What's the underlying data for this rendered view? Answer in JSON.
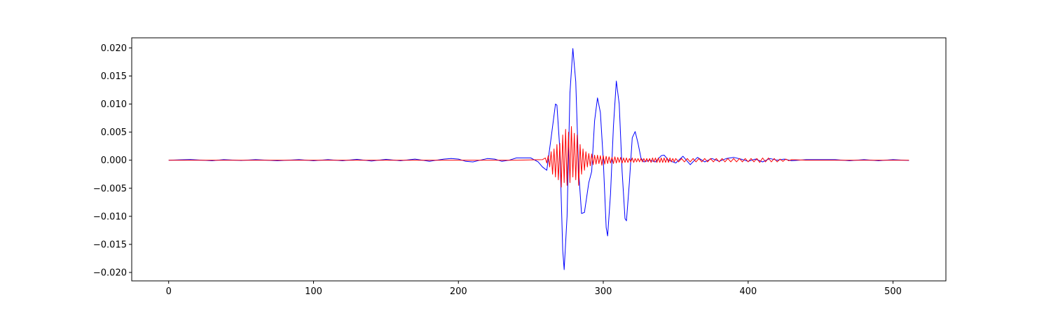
{
  "chart_data": {
    "type": "line",
    "title": "",
    "xlabel": "",
    "ylabel": "",
    "xlim": [
      -25.5,
      536.5
    ],
    "ylim": [
      -0.0215,
      0.0218
    ],
    "x_ticks": [
      0,
      100,
      200,
      300,
      400,
      500
    ],
    "x_tick_labels": [
      "0",
      "100",
      "200",
      "300",
      "400",
      "500"
    ],
    "y_ticks": [
      -0.02,
      -0.015,
      -0.01,
      -0.005,
      0.0,
      0.005,
      0.01,
      0.015,
      0.02
    ],
    "y_tick_labels": [
      "−0.020",
      "−0.015",
      "−0.010",
      "−0.005",
      "0.000",
      "0.005",
      "0.010",
      "0.015",
      "0.020"
    ],
    "grid": false,
    "legend": "none",
    "series": [
      {
        "color": "#0000ff",
        "points": [
          [
            0,
            0.0
          ],
          [
            15,
            0.00012
          ],
          [
            30,
            -0.0001
          ],
          [
            38,
            0.0001
          ],
          [
            50,
            -5e-05
          ],
          [
            60,
            0.0001
          ],
          [
            75,
            -0.0001
          ],
          [
            90,
            0.0001
          ],
          [
            100,
            -0.0001
          ],
          [
            110,
            0.0001
          ],
          [
            120,
            -0.0001
          ],
          [
            130,
            0.00015
          ],
          [
            140,
            -0.00015
          ],
          [
            150,
            0.00015
          ],
          [
            160,
            -0.0001
          ],
          [
            170,
            0.0002
          ],
          [
            180,
            -0.0002
          ],
          [
            190,
            0.0002
          ],
          [
            195,
            0.0003
          ],
          [
            200,
            0.0002
          ],
          [
            205,
            -0.0002
          ],
          [
            210,
            -0.0003
          ],
          [
            215,
            0.0
          ],
          [
            220,
            0.0003
          ],
          [
            225,
            0.0002
          ],
          [
            230,
            -0.0002
          ],
          [
            235,
            0.0
          ],
          [
            240,
            0.0004
          ],
          [
            245,
            0.0004
          ],
          [
            250,
            0.0004
          ],
          [
            255,
            -0.0003
          ],
          [
            258,
            -0.0012
          ],
          [
            261,
            -0.0018
          ],
          [
            264,
            0.004
          ],
          [
            267,
            0.01
          ],
          [
            268,
            0.0098
          ],
          [
            270,
            0.002
          ],
          [
            272,
            -0.016
          ],
          [
            273,
            -0.0195
          ],
          [
            275,
            -0.01
          ],
          [
            277,
            0.012
          ],
          [
            279,
            0.0199
          ],
          [
            281,
            0.014
          ],
          [
            283,
            -0.002
          ],
          [
            285,
            -0.0095
          ],
          [
            287,
            -0.0093
          ],
          [
            290,
            -0.004
          ],
          [
            292,
            -0.002
          ],
          [
            294,
            0.007
          ],
          [
            296,
            0.0111
          ],
          [
            298,
            0.0085
          ],
          [
            300,
            0.0
          ],
          [
            302,
            -0.012
          ],
          [
            303,
            -0.0135
          ],
          [
            305,
            -0.006
          ],
          [
            307,
            0.006
          ],
          [
            309,
            0.0141
          ],
          [
            311,
            0.01
          ],
          [
            313,
            -0.002
          ],
          [
            315,
            -0.0104
          ],
          [
            316,
            -0.0108
          ],
          [
            318,
            -0.004
          ],
          [
            320,
            0.004
          ],
          [
            322,
            0.0051
          ],
          [
            324,
            0.003
          ],
          [
            326,
            0.0004
          ],
          [
            328,
            -0.0003
          ],
          [
            332,
            0.0
          ],
          [
            336,
            -0.0003
          ],
          [
            340,
            0.0008
          ],
          [
            342,
            0.0009
          ],
          [
            345,
            0.0
          ],
          [
            350,
            -0.0005
          ],
          [
            355,
            0.0007
          ],
          [
            360,
            -0.0008
          ],
          [
            365,
            0.0005
          ],
          [
            370,
            -0.0003
          ],
          [
            375,
            0.0003
          ],
          [
            380,
            -0.0002
          ],
          [
            385,
            0.0003
          ],
          [
            390,
            0.0005
          ],
          [
            395,
            0.0002
          ],
          [
            400,
            -0.0002
          ],
          [
            405,
            0.0002
          ],
          [
            410,
            -0.0003
          ],
          [
            415,
            0.0003
          ],
          [
            420,
            0.0
          ],
          [
            425,
            0.0002
          ],
          [
            430,
            -0.0001
          ],
          [
            440,
            0.0001
          ],
          [
            450,
            0.0001
          ],
          [
            460,
            0.0001
          ],
          [
            470,
            -0.0001
          ],
          [
            480,
            0.0001
          ],
          [
            490,
            -0.0001
          ],
          [
            500,
            0.0001
          ],
          [
            511,
            -5e-05
          ]
        ]
      },
      {
        "color": "#ff0000",
        "points": [
          [
            0,
            0.0
          ],
          [
            30,
            0.0
          ],
          [
            60,
            0.0
          ],
          [
            100,
            0.0
          ],
          [
            150,
            0.0
          ],
          [
            200,
            0.0
          ],
          [
            240,
            0.0
          ],
          [
            258,
            0.0001
          ],
          [
            260,
            0.0004
          ],
          [
            261,
            -0.0005
          ],
          [
            262,
            0.0008
          ],
          [
            263,
            -0.0012
          ],
          [
            264,
            0.0015
          ],
          [
            265,
            -0.0025
          ],
          [
            266,
            0.002
          ],
          [
            267,
            -0.003
          ],
          [
            268,
            0.0028
          ],
          [
            269,
            -0.0035
          ],
          [
            270,
            0.003
          ],
          [
            271,
            -0.0048
          ],
          [
            272,
            0.0045
          ],
          [
            273,
            -0.004
          ],
          [
            274,
            0.0055
          ],
          [
            275,
            -0.0045
          ],
          [
            276,
            0.005
          ],
          [
            277,
            -0.004
          ],
          [
            278,
            0.006
          ],
          [
            279,
            -0.003
          ],
          [
            280,
            0.0048
          ],
          [
            281,
            -0.0035
          ],
          [
            282,
            0.0045
          ],
          [
            283,
            -0.0045
          ],
          [
            284,
            0.0028
          ],
          [
            285,
            -0.0025
          ],
          [
            286,
            0.002
          ],
          [
            287,
            -0.0018
          ],
          [
            288,
            0.0015
          ],
          [
            289,
            -0.0012
          ],
          [
            290,
            0.0012
          ],
          [
            291,
            -0.001
          ],
          [
            292,
            0.0011
          ],
          [
            293,
            -0.0008
          ],
          [
            294,
            0.0009
          ],
          [
            295,
            -0.0007
          ],
          [
            296,
            0.0009
          ],
          [
            297,
            -0.0006
          ],
          [
            298,
            0.0008
          ],
          [
            299,
            -0.0009
          ],
          [
            300,
            0.0008
          ],
          [
            301,
            -0.0007
          ],
          [
            302,
            0.0007
          ],
          [
            303,
            -0.0006
          ],
          [
            304,
            0.0006
          ],
          [
            305,
            -0.0005
          ],
          [
            306,
            0.0005
          ],
          [
            307,
            -0.0006
          ],
          [
            308,
            0.0006
          ],
          [
            309,
            -0.0005
          ],
          [
            310,
            0.0005
          ],
          [
            311,
            -0.0004
          ],
          [
            312,
            0.0005
          ],
          [
            313,
            -0.0005
          ],
          [
            314,
            0.0004
          ],
          [
            315,
            -0.0004
          ],
          [
            316,
            0.0004
          ],
          [
            317,
            -0.0004
          ],
          [
            318,
            0.0003
          ],
          [
            319,
            -0.0003
          ],
          [
            320,
            0.0004
          ],
          [
            321,
            -0.0004
          ],
          [
            322,
            0.0003
          ],
          [
            323,
            -0.0003
          ],
          [
            324,
            0.0003
          ],
          [
            325,
            -0.0003
          ],
          [
            326,
            0.0003
          ],
          [
            327,
            -0.0003
          ],
          [
            328,
            0.0003
          ],
          [
            329,
            -0.0003
          ],
          [
            330,
            0.0003
          ],
          [
            331,
            -0.0003
          ],
          [
            332,
            0.0003
          ],
          [
            333,
            -0.0004
          ],
          [
            334,
            0.0004
          ],
          [
            335,
            -0.0003
          ],
          [
            336,
            0.0004
          ],
          [
            337,
            -0.0004
          ],
          [
            338,
            0.0004
          ],
          [
            339,
            -0.0004
          ],
          [
            340,
            0.0004
          ],
          [
            341,
            -0.0004
          ],
          [
            342,
            0.0004
          ],
          [
            343,
            -0.0004
          ],
          [
            344,
            0.0004
          ],
          [
            345,
            -0.0004
          ],
          [
            346,
            0.0004
          ],
          [
            347,
            -0.0003
          ],
          [
            348,
            0.0003
          ],
          [
            349,
            -0.0003
          ],
          [
            350,
            0.0003
          ],
          [
            352,
            -0.0003
          ],
          [
            354,
            0.0003
          ],
          [
            356,
            -0.0003
          ],
          [
            358,
            0.0003
          ],
          [
            360,
            -0.0003
          ],
          [
            362,
            0.0003
          ],
          [
            364,
            -0.0003
          ],
          [
            366,
            0.0003
          ],
          [
            368,
            -0.0003
          ],
          [
            370,
            0.0003
          ],
          [
            372,
            -0.0003
          ],
          [
            374,
            0.0003
          ],
          [
            376,
            -0.0003
          ],
          [
            378,
            0.0003
          ],
          [
            380,
            -0.0003
          ],
          [
            382,
            0.0003
          ],
          [
            384,
            -0.0003
          ],
          [
            386,
            0.0003
          ],
          [
            388,
            -0.0003
          ],
          [
            390,
            0.0003
          ],
          [
            392,
            -0.0003
          ],
          [
            394,
            0.0003
          ],
          [
            396,
            -0.0003
          ],
          [
            398,
            0.0003
          ],
          [
            400,
            -0.0003
          ],
          [
            402,
            0.0003
          ],
          [
            404,
            -0.0003
          ],
          [
            406,
            0.0003
          ],
          [
            408,
            -0.0004
          ],
          [
            410,
            0.0004
          ],
          [
            412,
            -0.0003
          ],
          [
            414,
            0.0004
          ],
          [
            416,
            -0.0003
          ],
          [
            418,
            0.0003
          ],
          [
            420,
            -0.0003
          ],
          [
            422,
            0.0002
          ],
          [
            424,
            -0.0002
          ],
          [
            426,
            0.0002
          ],
          [
            428,
            -0.0001
          ],
          [
            430,
            0.0001
          ],
          [
            440,
            0.0
          ],
          [
            460,
            0.0
          ],
          [
            480,
            0.0
          ],
          [
            500,
            0.0
          ],
          [
            511,
            0.0
          ]
        ]
      }
    ]
  }
}
